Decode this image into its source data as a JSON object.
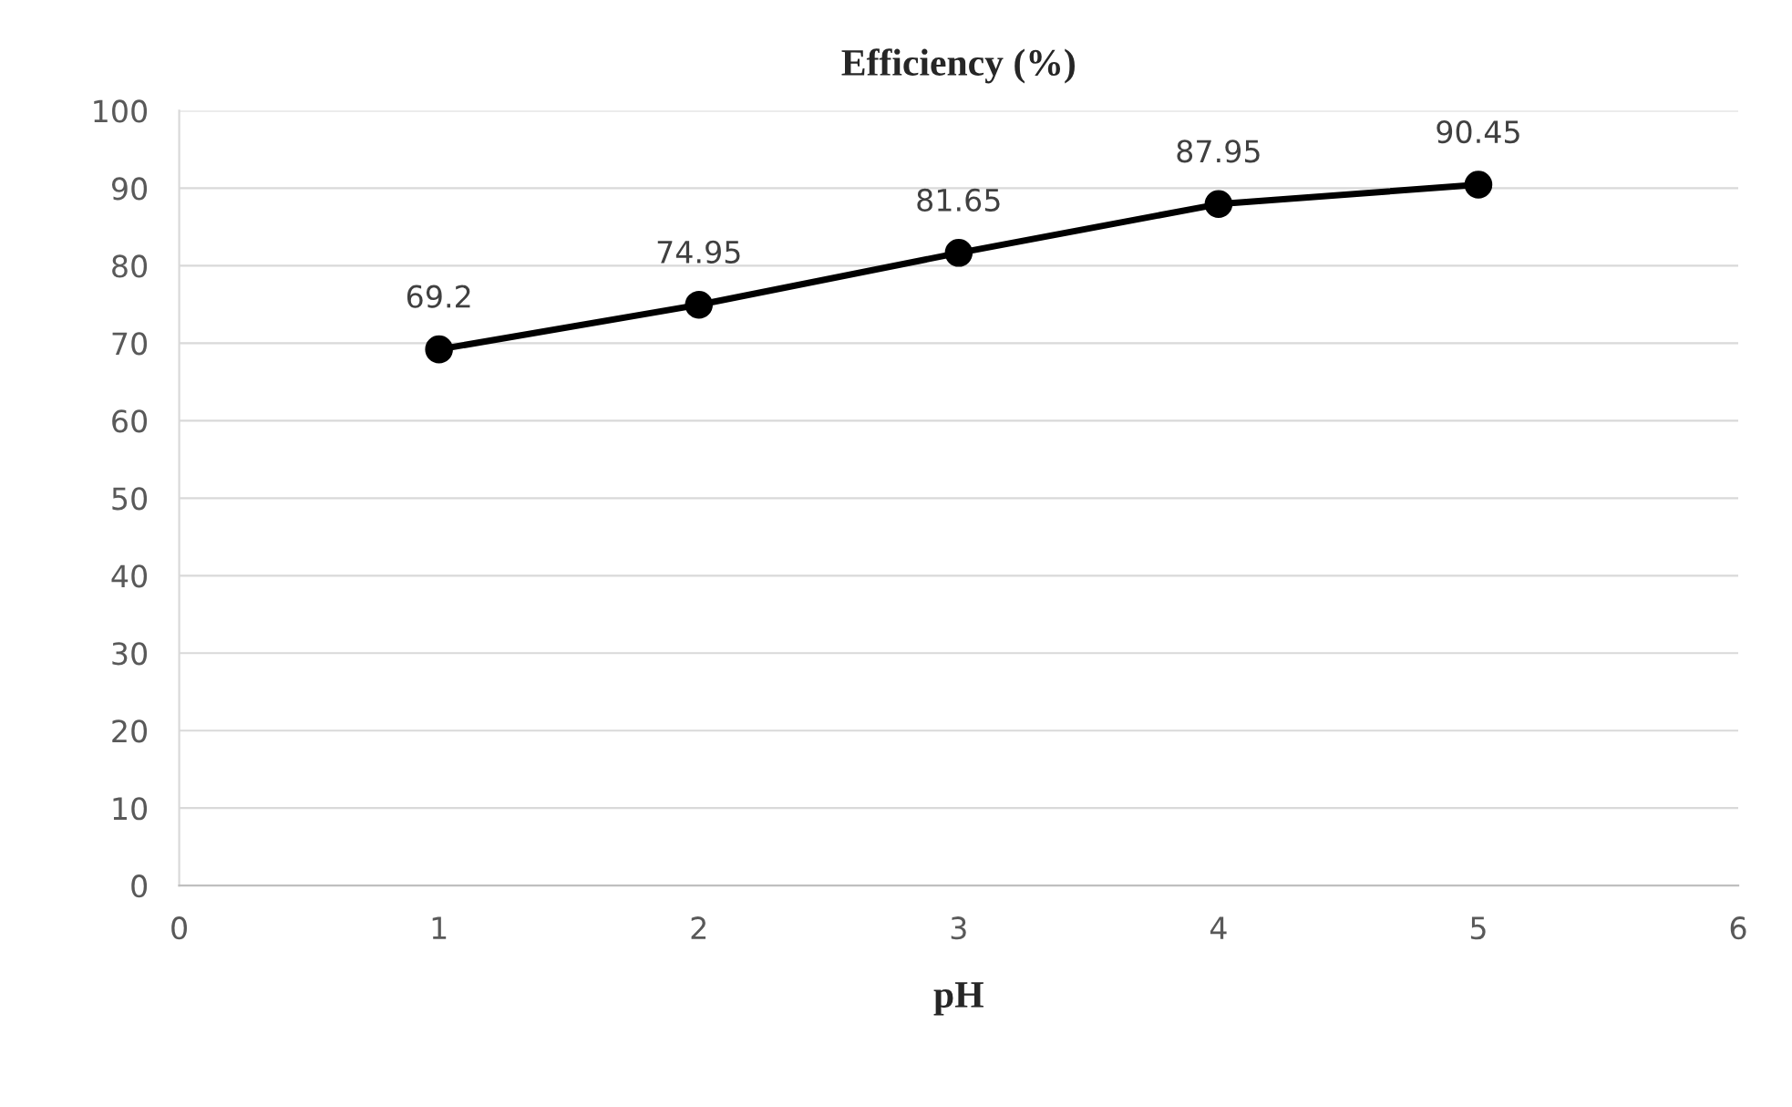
{
  "chart_data": {
    "type": "line",
    "title": "Efficiency (%)",
    "xlabel": "pH",
    "x": [
      1,
      2,
      3,
      4,
      5
    ],
    "series": [
      {
        "color": "#000000",
        "values": [
          69.2,
          74.95,
          81.65,
          87.95,
          90.45
        ]
      }
    ],
    "xlim": [
      0,
      6
    ],
    "xticks": [
      0,
      1,
      2,
      3,
      4,
      5,
      6
    ],
    "ylim": [
      0,
      100
    ],
    "yticks": [
      0,
      10,
      20,
      30,
      40,
      50,
      60,
      70,
      80,
      90,
      100
    ],
    "grid": "y",
    "marker": "circle",
    "line_style": "solid",
    "data_labels": true
  }
}
